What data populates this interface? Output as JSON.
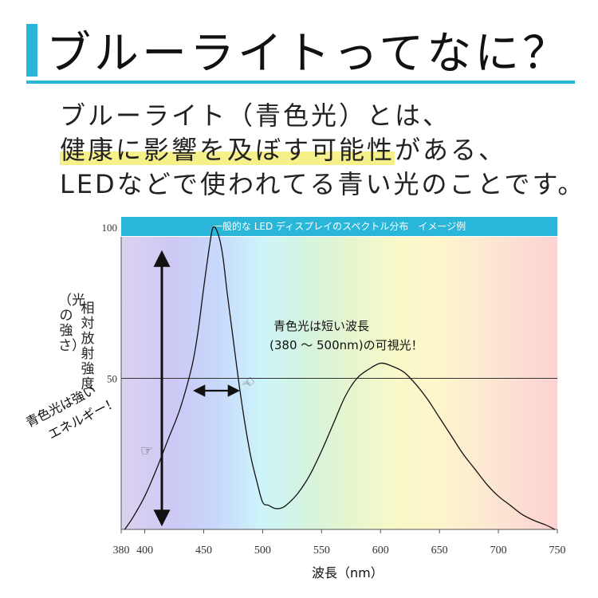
{
  "heading": {
    "title": "ブルーライトってなに？",
    "line1": "ブルーライト（青色光）とは、",
    "line2_highlight": "健康に影響を及ぼす可能性",
    "line2_rest": "がある、",
    "line3": "LEDなどで使われてる青い光のことです。"
  },
  "colors": {
    "accent": "#29b6d8",
    "highlight": "#f5f08a"
  },
  "chart_data": {
    "type": "line",
    "title": "一般的な LED ディスプレイのスペクトル分布　イメージ例",
    "xlabel": "波長（nm）",
    "ylabel_main": "相対放射強度",
    "ylabel_sub": "（光の強さ）",
    "xlim": [
      380,
      750
    ],
    "ylim": [
      0,
      100
    ],
    "x_ticks": [
      "380",
      "400",
      "450",
      "500",
      "550",
      "600",
      "650",
      "700",
      "750"
    ],
    "x_tick_values": [
      380,
      400,
      450,
      500,
      550,
      600,
      650,
      700,
      750
    ],
    "y_ticks": [
      "100",
      "50"
    ],
    "y_tick_values": [
      100,
      50
    ],
    "reference_line": 50,
    "series": [
      {
        "name": "spectrum",
        "x": [
          383,
          390,
          400,
          410,
          420,
          430,
          440,
          445,
          450,
          455,
          458,
          462,
          466,
          470,
          475,
          480,
          485,
          490,
          495,
          500,
          505,
          510,
          515,
          520,
          530,
          540,
          550,
          560,
          570,
          580,
          590,
          600,
          610,
          620,
          630,
          640,
          650,
          660,
          670,
          680,
          690,
          700,
          710,
          720,
          730,
          740,
          748
        ],
        "y": [
          0,
          4,
          11,
          20,
          30,
          40,
          54,
          65,
          80,
          94,
          100,
          98,
          91,
          78,
          63,
          48,
          35,
          24,
          16,
          9,
          8,
          7,
          7,
          8,
          12,
          18,
          26,
          35,
          44,
          50,
          53,
          55,
          54,
          52,
          48,
          43,
          37,
          31,
          25,
          20,
          15,
          11,
          8,
          5,
          3,
          1.5,
          0
        ]
      }
    ],
    "annotations": {
      "blue_light": "青色光は短い波長",
      "visible_range": "(380 ～ 500nm)の可視光！",
      "energy_line1": "青色光は強い",
      "energy_line2": "エネルギー！"
    }
  }
}
